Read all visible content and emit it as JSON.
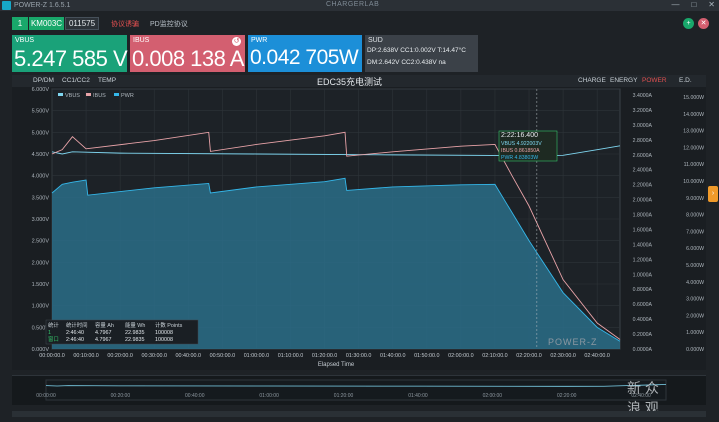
{
  "window": {
    "title": "POWER-Z  1.6.5.1",
    "brand": "CHARGERLAB",
    "controls": [
      "—",
      "□",
      "✕"
    ]
  },
  "toolbar": {
    "index": "1",
    "model": "KM003C",
    "serial": "011575",
    "mode_a": "协议诱骗",
    "mode_b": "PD监控协议",
    "icons": [
      {
        "name": "add-icon",
        "glyph": "+",
        "color": "#19a86b"
      },
      {
        "name": "close-icon",
        "glyph": "✕",
        "color": "#d35f70"
      }
    ]
  },
  "meters": {
    "vbus": {
      "label": "VBUS",
      "value": "5.247 585 V"
    },
    "ibus": {
      "label": "IBUS",
      "value": "0.008 138 A",
      "reset_glyph": "↺"
    },
    "pwr": {
      "label": "PWR",
      "value": "0.042 705W"
    },
    "sub": {
      "label": "SUD",
      "line1": "DP:2.638V  CC1:0.002V  T:14.47°C",
      "line2": "DM:2.642V  CC2:0.438V  na"
    }
  },
  "chart_tabs": {
    "left": [
      "DP/DM",
      "CC1/CC2",
      "TEMP"
    ],
    "right": [
      "CHARGE",
      "ENERGY",
      "POWER",
      "E.D."
    ],
    "active_right": "POWER",
    "title": "EDC35充电测试"
  },
  "tooltip": {
    "time": "2:22:16.400",
    "vbus": "VBUS  4.922003V",
    "ibus": "IBUS  0.861850A",
    "pwr": "PWR  4.83803W"
  },
  "stats_table": {
    "headers": [
      "统计",
      "统计时间",
      "容量 Ah",
      "能量 Wh",
      "计数 Points"
    ],
    "rows": [
      [
        "1",
        "2:46:40",
        "4.7967",
        "22.9835",
        "100008"
      ],
      [
        "窗口",
        "2:46:40",
        "4.7967",
        "22.9835",
        "100008"
      ]
    ]
  },
  "overview_ticks": [
    "00:00:00",
    "00:20:00",
    "00:40:00",
    "01:00:00",
    "01:20:00",
    "01:40:00",
    "02:00:00",
    "02:20:00",
    "02:40:00"
  ],
  "watermark": "新 众\n浪 观",
  "chart_data": {
    "type": "line",
    "title": "EDC35充电测试",
    "xlabel": "Elapsed Time",
    "x_ticks": [
      "00:00:00.0",
      "00:10:00.0",
      "00:20:00.0",
      "00:30:00.0",
      "00:40:00.0",
      "00:50:00.0",
      "01:00:00.0",
      "01:10:00.0",
      "01:20:00.0",
      "01:30:00.0",
      "01:40:00.0",
      "01:50:00.0",
      "02:00:00.0",
      "02:10:00.0",
      "02:20:00.0",
      "02:30:00.0",
      "02:40:00.0"
    ],
    "xlim_minutes": [
      0,
      166.7
    ],
    "y_left_ticks": [
      "0.000V",
      "0.500V",
      "1.000V",
      "1.500V",
      "2.000V",
      "2.500V",
      "3.000V",
      "3.500V",
      "4.000V",
      "4.500V",
      "5.000V",
      "5.500V",
      "6.000V"
    ],
    "ylim_left": [
      0,
      6
    ],
    "y_mid_ticks": [
      "0.0000A",
      "0.2000A",
      "0.4000A",
      "0.6000A",
      "0.8000A",
      "1.0000A",
      "1.2000A",
      "1.4000A",
      "1.6000A",
      "1.8000A",
      "2.0000A",
      "2.2000A",
      "2.4000A",
      "2.6000A",
      "2.8000A",
      "3.0000A",
      "3.2000A",
      "3.4000A"
    ],
    "y_right_ticks": [
      "0.000W",
      "1.000W",
      "2.000W",
      "3.000W",
      "4.000W",
      "5.000W",
      "6.000W",
      "7.000W",
      "8.000W",
      "9.000W",
      "10.000W",
      "11.000W",
      "12.000W",
      "13.000W",
      "14.000W",
      "15.000W"
    ],
    "legend": [
      "VBUS",
      "IBUS",
      "PWR"
    ],
    "grid": true,
    "series": [
      {
        "name": "VBUS",
        "color": "#7fd6f0",
        "points": [
          [
            0,
            4.55
          ],
          [
            3,
            4.5
          ],
          [
            6,
            4.55
          ],
          [
            20,
            4.52
          ],
          [
            60,
            4.5
          ],
          [
            100,
            4.48
          ],
          [
            140,
            4.46
          ],
          [
            150,
            4.47
          ],
          [
            160,
            4.6
          ],
          [
            166.7,
            4.69
          ]
        ]
      },
      {
        "name": "IBUS",
        "color": "#e8a3a8",
        "points": [
          [
            0,
            4.5
          ],
          [
            3,
            4.6
          ],
          [
            6,
            4.9
          ],
          [
            10,
            4.62
          ],
          [
            30,
            4.81
          ],
          [
            46,
            5.0
          ],
          [
            46.5,
            4.56
          ],
          [
            60,
            4.72
          ],
          [
            80,
            4.92
          ],
          [
            86,
            5.0
          ],
          [
            86.5,
            4.45
          ],
          [
            100,
            4.55
          ],
          [
            120,
            4.68
          ],
          [
            130,
            4.72
          ],
          [
            135,
            4.0
          ],
          [
            140,
            3.3
          ],
          [
            150,
            1.6
          ],
          [
            160,
            0.6
          ],
          [
            166.7,
            0.22
          ]
        ]
      },
      {
        "name": "PWR",
        "color": "#34b7ea",
        "points": [
          [
            0,
            3.6
          ],
          [
            3,
            3.8
          ],
          [
            6,
            3.85
          ],
          [
            10,
            3.9
          ],
          [
            10.5,
            3.55
          ],
          [
            30,
            3.72
          ],
          [
            46,
            3.82
          ],
          [
            46.5,
            3.6
          ],
          [
            60,
            3.74
          ],
          [
            80,
            3.86
          ],
          [
            86,
            3.94
          ],
          [
            86.5,
            3.66
          ],
          [
            100,
            3.74
          ],
          [
            120,
            3.79
          ],
          [
            130,
            3.8
          ],
          [
            140,
            2.5
          ],
          [
            150,
            1.3
          ],
          [
            160,
            0.5
          ],
          [
            166.7,
            0.18
          ]
        ]
      }
    ]
  }
}
